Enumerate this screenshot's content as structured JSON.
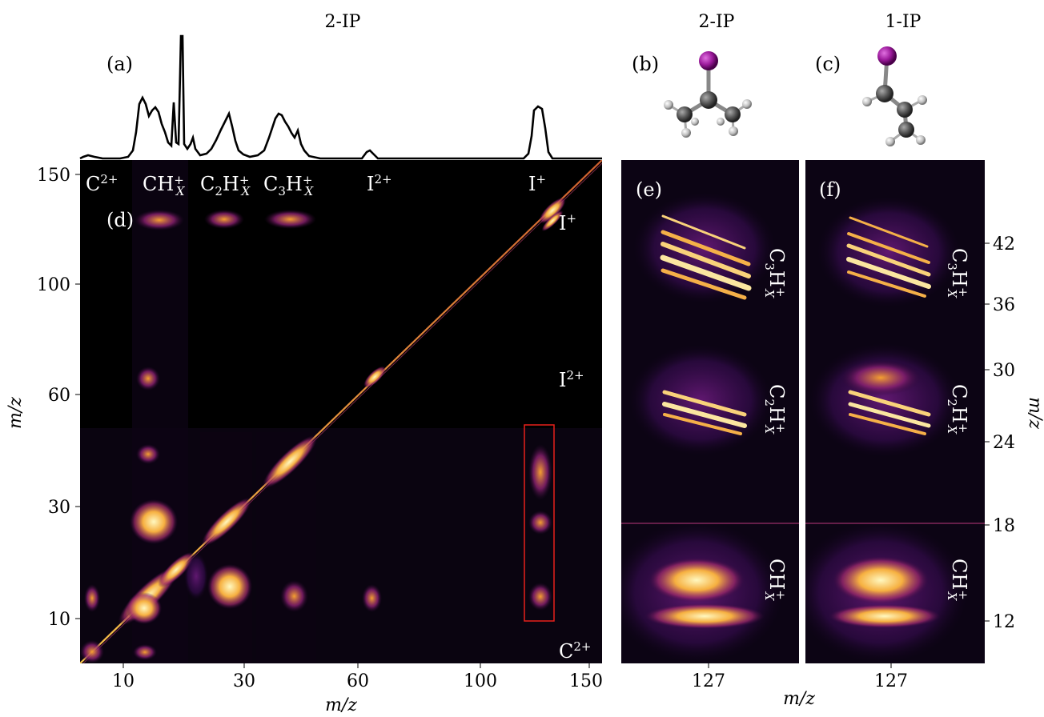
{
  "titles": {
    "left": "2-IP",
    "mid": "2-IP",
    "right": "1-IP"
  },
  "panel_labels": {
    "a": "(a)",
    "b": "(b)",
    "c": "(c)",
    "d": "(d)",
    "e": "(e)",
    "f": "(f)"
  },
  "axis": {
    "x_label": "m/z",
    "y_label_left": "m/z",
    "y_label_right": "m/z",
    "x_label_right": "m/z"
  },
  "main_map": {
    "x_ticks": [
      "10",
      "30",
      "60",
      "100",
      "150"
    ],
    "y_ticks": [
      "10",
      "30",
      "60",
      "100",
      "150"
    ],
    "top_labels": [
      {
        "base": "C",
        "sup": "2+",
        "sub": ""
      },
      {
        "base": "CH",
        "sup": "+",
        "sub": "X"
      },
      {
        "base": "C",
        "sub2": "2",
        "base2": "H",
        "sup": "+",
        "sub": "X"
      },
      {
        "base": "C",
        "sub2": "3",
        "base2": "H",
        "sup": "+",
        "sub": "X"
      },
      {
        "base": "I",
        "sup": "2+",
        "sub": ""
      },
      {
        "base": "I",
        "sup": "+",
        "sub": ""
      }
    ],
    "right_labels": [
      {
        "base": "I",
        "sup": "+"
      },
      {
        "base": "I",
        "sup": "2+"
      },
      {
        "base": "C",
        "sup": "2+"
      }
    ]
  },
  "zoom_panels": {
    "x_tick": "127",
    "y_ticks": [
      "42",
      "36",
      "30",
      "24",
      "18",
      "12"
    ],
    "fragment_labels": [
      "C3HX+",
      "C2HX+",
      "CHX+"
    ]
  },
  "colors": {
    "map_bg": "#000000",
    "hot": "#fff3a8",
    "mid": "#f08a2a",
    "low": "#7a1f8a",
    "box": "#e8201a",
    "iodine": "#9b1a9b",
    "carbon": "#555555"
  }
}
